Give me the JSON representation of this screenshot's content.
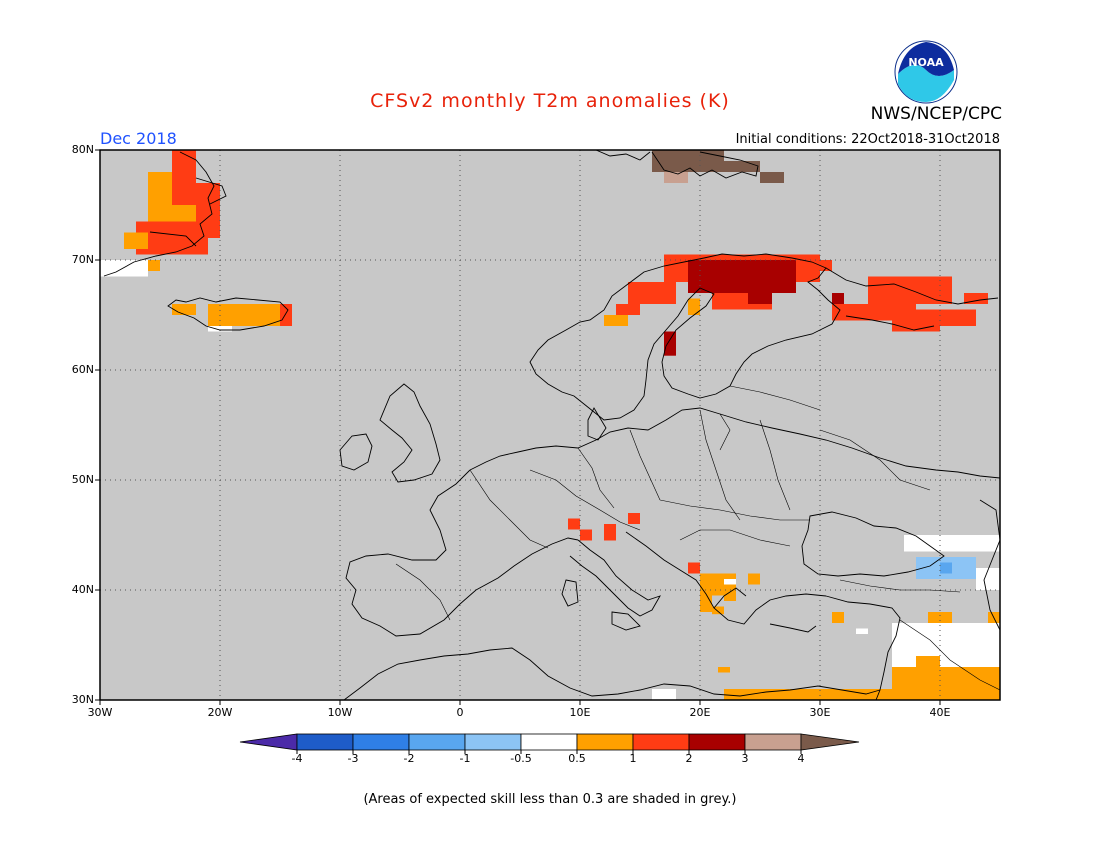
{
  "header": {
    "title": "CFSv2 monthly T2m anomalies (K)",
    "agency": "NWS/NCEP/CPC",
    "month": "Dec 2018",
    "initial_conditions": "Initial conditions: 22Oct2018-31Oct2018",
    "logo_text": "NOAA"
  },
  "map": {
    "background_color": "#c8c8c8",
    "lat_labels": [
      "80N",
      "70N",
      "60N",
      "50N",
      "40N",
      "30N"
    ],
    "lon_labels": [
      "30W",
      "20W",
      "10W",
      "0",
      "10E",
      "20E",
      "30E",
      "40E"
    ],
    "lat_range": [
      30,
      80
    ],
    "lon_range": [
      -30,
      45
    ],
    "gridlines": true,
    "anomaly_regions": [
      {
        "name": "Greenland east coast",
        "lon": [
          -26,
          -21
        ],
        "lat": [
          70,
          80
        ],
        "category": "1 to 2 / 0.5 to 1"
      },
      {
        "name": "Iceland",
        "lon": [
          -23,
          -14
        ],
        "lat": [
          63.5,
          66.5
        ],
        "category": "0.5 to 1"
      },
      {
        "name": "Svalbard",
        "lon": [
          15,
          27
        ],
        "lat": [
          77,
          80
        ],
        "category": "3 to 4"
      },
      {
        "name": "Northern Scandinavia",
        "lon": [
          12,
          30
        ],
        "lat": [
          66,
          71
        ],
        "category": "2 to 3 / 1 to 2"
      },
      {
        "name": "Northwest Russia",
        "lon": [
          31,
          45
        ],
        "lat": [
          63.5,
          68.5
        ],
        "category": "1 to 2"
      },
      {
        "name": "Alps / Adriatic",
        "lon": [
          9,
          15
        ],
        "lat": [
          45.5,
          47
        ],
        "category": "1 to 2"
      },
      {
        "name": "Balkans / Greece",
        "lon": [
          19,
          25
        ],
        "lat": [
          38,
          42
        ],
        "category": "0.5 to 1"
      },
      {
        "name": "Black Sea east",
        "lon": [
          37,
          44
        ],
        "lat": [
          41,
          43
        ],
        "category": "-1 to -0.5"
      },
      {
        "name": "Middle East",
        "lon": [
          36,
          45
        ],
        "lat": [
          30,
          37
        ],
        "category": "-0.5 to 0.5 / 0.5 to 1"
      },
      {
        "name": "North Africa coast",
        "lon": [
          22,
          36
        ],
        "lat": [
          30,
          31
        ],
        "category": "0.5 to 1"
      }
    ]
  },
  "colorbar": {
    "labels": [
      "-4",
      "-3",
      "-2",
      "-1",
      "-0.5",
      "0.5",
      "1",
      "2",
      "3",
      "4"
    ],
    "colors": [
      "#4b2aa8",
      "#1e5cc8",
      "#2f7fe6",
      "#59a6ef",
      "#8cc4f5",
      "#ffffff",
      "#ffa000",
      "#ff3c14",
      "#a80000",
      "#c8a090",
      "#7a5a4a"
    ]
  },
  "footnote": "(Areas of expected skill less than 0.3 are shaded in grey.)"
}
